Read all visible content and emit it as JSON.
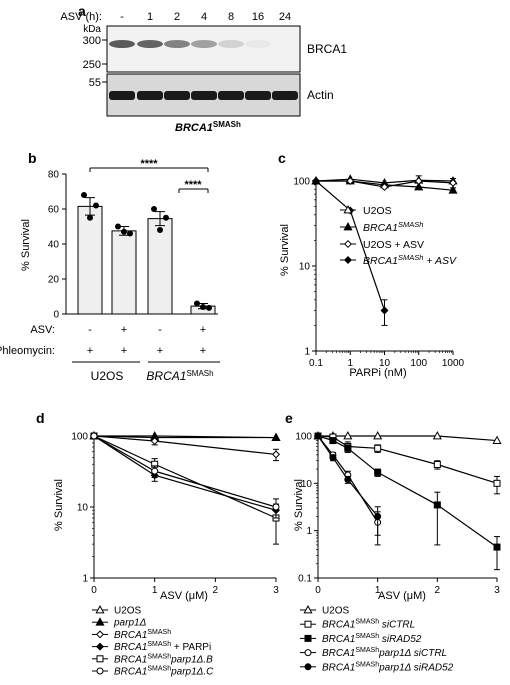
{
  "panel_a": {
    "label": "a",
    "asv_label": "ASV (h):",
    "lanes": [
      "-",
      "1",
      "2",
      "4",
      "8",
      "16",
      "24"
    ],
    "kda_label": "kDa",
    "markers": [
      "300",
      "250",
      "55"
    ],
    "brca1_label": "BRCA1",
    "actin_label": "Actin",
    "cell_line_main": "BRCA1",
    "cell_line_sup": "SMASh",
    "brca1_band_intensity": [
      0.75,
      0.7,
      0.55,
      0.4,
      0.15,
      0.04,
      0.0
    ]
  },
  "panel_b": {
    "label": "b",
    "ylabel": "% Survival",
    "yticks": [
      "0",
      "20",
      "40",
      "60",
      "80"
    ],
    "asv_label": "ASV:",
    "asv_values": [
      "-",
      "+",
      "-",
      "+"
    ],
    "phleo_label": "Phleomycin:",
    "phleo_values": [
      "+",
      "+",
      "+",
      "+"
    ],
    "group1": "U2OS",
    "group2_main": "BRCA1",
    "group2_sup": "SMASh",
    "sig1": "****",
    "sig2": "****"
  },
  "panel_c": {
    "label": "c",
    "ylabel": "% Survival",
    "xlabel": "PARPi (nM)",
    "yticks": [
      "1",
      "10",
      "100"
    ],
    "xticks": [
      "0.1",
      "1",
      "10",
      "100",
      "1000"
    ],
    "legend": [
      {
        "main": "U2OS",
        "sup": "",
        "suffix": ""
      },
      {
        "main": "BRCA1",
        "sup": "SMASh",
        "suffix": ""
      },
      {
        "main": "U2OS + ASV",
        "sup": "",
        "suffix": ""
      },
      {
        "main": "BRCA1",
        "sup": "SMASh",
        "suffix": " + ASV"
      }
    ]
  },
  "panel_d": {
    "label": "d",
    "ylabel": "% Survival",
    "xlabel": "ASV (μM)",
    "yticks": [
      "1",
      "10",
      "100"
    ],
    "xticks": [
      "0",
      "1",
      "2",
      "3"
    ],
    "legend": [
      {
        "main": "U2OS",
        "sup": "",
        "suffix": ""
      },
      {
        "main": "parp1Δ",
        "sup": "",
        "suffix": ""
      },
      {
        "main": "BRCA1",
        "sup": "SMASh",
        "suffix": ""
      },
      {
        "main": "BRCA1",
        "sup": "SMASh",
        "suffix": " + PARPi"
      },
      {
        "main": "BRCA1",
        "sup": "SMASh",
        "suffix": "parp1Δ.B"
      },
      {
        "main": "BRCA1",
        "sup": "SMASh",
        "suffix": "parp1Δ.C"
      }
    ]
  },
  "panel_e": {
    "label": "e",
    "ylabel": "% Survival",
    "xlabel": "ASV (μM)",
    "yticks": [
      "0.1",
      "1",
      "10",
      "100"
    ],
    "xticks": [
      "0",
      "1",
      "2",
      "3"
    ],
    "legend": [
      {
        "main": "U2OS",
        "sup": "",
        "suffix": ""
      },
      {
        "main": "BRCA1",
        "sup": "SMASh",
        "suffix": " siCTRL"
      },
      {
        "main": "BRCA1",
        "sup": "SMASh",
        "suffix": " siRAD52"
      },
      {
        "main": "BRCA1",
        "sup": "SMASh",
        "suffix": "parp1Δ siCTRL"
      },
      {
        "main": "BRCA1",
        "sup": "SMASh",
        "suffix": "parp1Δ siRAD52"
      }
    ]
  },
  "chart_data": [
    {
      "panel": "b",
      "type": "bar",
      "categories": [
        "U2OS -ASV",
        "U2OS +ASV",
        "BRCA1SMASh -ASV",
        "BRCA1SMASh +ASV"
      ],
      "values": [
        61.5,
        47.5,
        54.5,
        4.5
      ],
      "errors": [
        5,
        2.5,
        4,
        1.5
      ],
      "points": [
        [
          68,
          62,
          55
        ],
        [
          50,
          46,
          47
        ],
        [
          60,
          55,
          48
        ],
        [
          6,
          3.5,
          4
        ]
      ],
      "ylabel": "% Survival",
      "ylim": [
        0,
        80
      ]
    },
    {
      "panel": "c",
      "type": "line",
      "x": [
        0.1,
        1,
        10,
        100,
        1000
      ],
      "xscale": "log",
      "yscale": "log",
      "xlabel": "PARPi (nM)",
      "ylabel": "% Survival",
      "xlim": [
        0.1,
        1000
      ],
      "ylim": [
        1,
        100
      ],
      "series": [
        {
          "name": "U2OS",
          "marker": "open-triangle",
          "values": [
            100,
            105,
            95,
            102,
            100
          ],
          "errors": [
            0,
            0,
            0,
            0,
            0
          ]
        },
        {
          "name": "BRCA1SMASh",
          "marker": "filled-triangle",
          "values": [
            100,
            100,
            90,
            85,
            78
          ],
          "errors": [
            0,
            0,
            0,
            0,
            0
          ]
        },
        {
          "name": "U2OS + ASV",
          "marker": "open-diamond",
          "values": [
            100,
            100,
            85,
            100,
            95
          ],
          "errors": [
            0,
            0,
            0,
            15,
            12
          ]
        },
        {
          "name": "BRCA1SMASh + ASV",
          "marker": "filled-diamond",
          "values": [
            100,
            45,
            3,
            null,
            null
          ],
          "errors": [
            0,
            0,
            1,
            0,
            0
          ]
        }
      ]
    },
    {
      "panel": "d",
      "type": "line",
      "x": [
        0,
        1,
        3
      ],
      "yscale": "log",
      "xlabel": "ASV (μM)",
      "ylabel": "% Survival",
      "xlim": [
        0,
        3
      ],
      "ylim": [
        1,
        100
      ],
      "series": [
        {
          "name": "U2OS",
          "marker": "open-triangle",
          "values": [
            100,
            100,
            95
          ],
          "errors": [
            0,
            0,
            0
          ]
        },
        {
          "name": "parp1Δ",
          "marker": "filled-triangle",
          "values": [
            100,
            95,
            95
          ],
          "errors": [
            0,
            0,
            0
          ]
        },
        {
          "name": "BRCA1SMASh",
          "marker": "open-diamond",
          "values": [
            100,
            85,
            55
          ],
          "errors": [
            0,
            10,
            10
          ]
        },
        {
          "name": "BRCA1SMASh + PARPi",
          "marker": "filled-diamond",
          "values": [
            100,
            28,
            9
          ],
          "errors": [
            0,
            5,
            2
          ]
        },
        {
          "name": "BRCA1SMASh parp1Δ.B",
          "marker": "open-square",
          "values": [
            100,
            40,
            7
          ],
          "errors": [
            0,
            8,
            4
          ]
        },
        {
          "name": "BRCA1SMASh parp1Δ.C",
          "marker": "open-circle",
          "values": [
            100,
            32,
            10
          ],
          "errors": [
            0,
            6,
            3
          ]
        }
      ]
    },
    {
      "panel": "e",
      "type": "line",
      "yscale": "log",
      "xlabel": "ASV (μM)",
      "ylabel": "% Survival",
      "xlim": [
        0,
        3
      ],
      "ylim": [
        0.1,
        100
      ],
      "series": [
        {
          "name": "U2OS",
          "marker": "open-triangle",
          "x": [
            0,
            0.25,
            0.5,
            1,
            2,
            3
          ],
          "values": [
            100,
            100,
            100,
            100,
            100,
            80
          ],
          "errors": [
            0,
            0,
            0,
            0,
            0,
            0
          ]
        },
        {
          "name": "BRCA1SMASh siCTRL",
          "marker": "open-square",
          "x": [
            0,
            0.25,
            0.5,
            1,
            2,
            3
          ],
          "values": [
            100,
            95,
            60,
            55,
            25,
            10
          ],
          "errors": [
            0,
            10,
            15,
            10,
            5,
            4
          ]
        },
        {
          "name": "BRCA1SMASh siRAD52",
          "marker": "filled-square",
          "x": [
            0,
            0.25,
            0.5,
            1,
            2,
            3
          ],
          "values": [
            100,
            80,
            55,
            17,
            3.5,
            0.45
          ],
          "errors": [
            0,
            10,
            10,
            3,
            3,
            0.3
          ]
        },
        {
          "name": "BRCA1SMASh parp1Δ siCTRL",
          "marker": "open-circle",
          "x": [
            0,
            0.25,
            0.5,
            1
          ],
          "values": [
            100,
            40,
            15,
            1.5
          ],
          "errors": [
            0,
            5,
            3,
            1
          ]
        },
        {
          "name": "BRCA1SMASh parp1Δ siRAD52",
          "marker": "filled-circle",
          "x": [
            0,
            0.25,
            0.5,
            1
          ],
          "values": [
            100,
            35,
            12,
            2
          ],
          "errors": [
            0,
            5,
            2,
            1.2
          ]
        }
      ]
    }
  ]
}
